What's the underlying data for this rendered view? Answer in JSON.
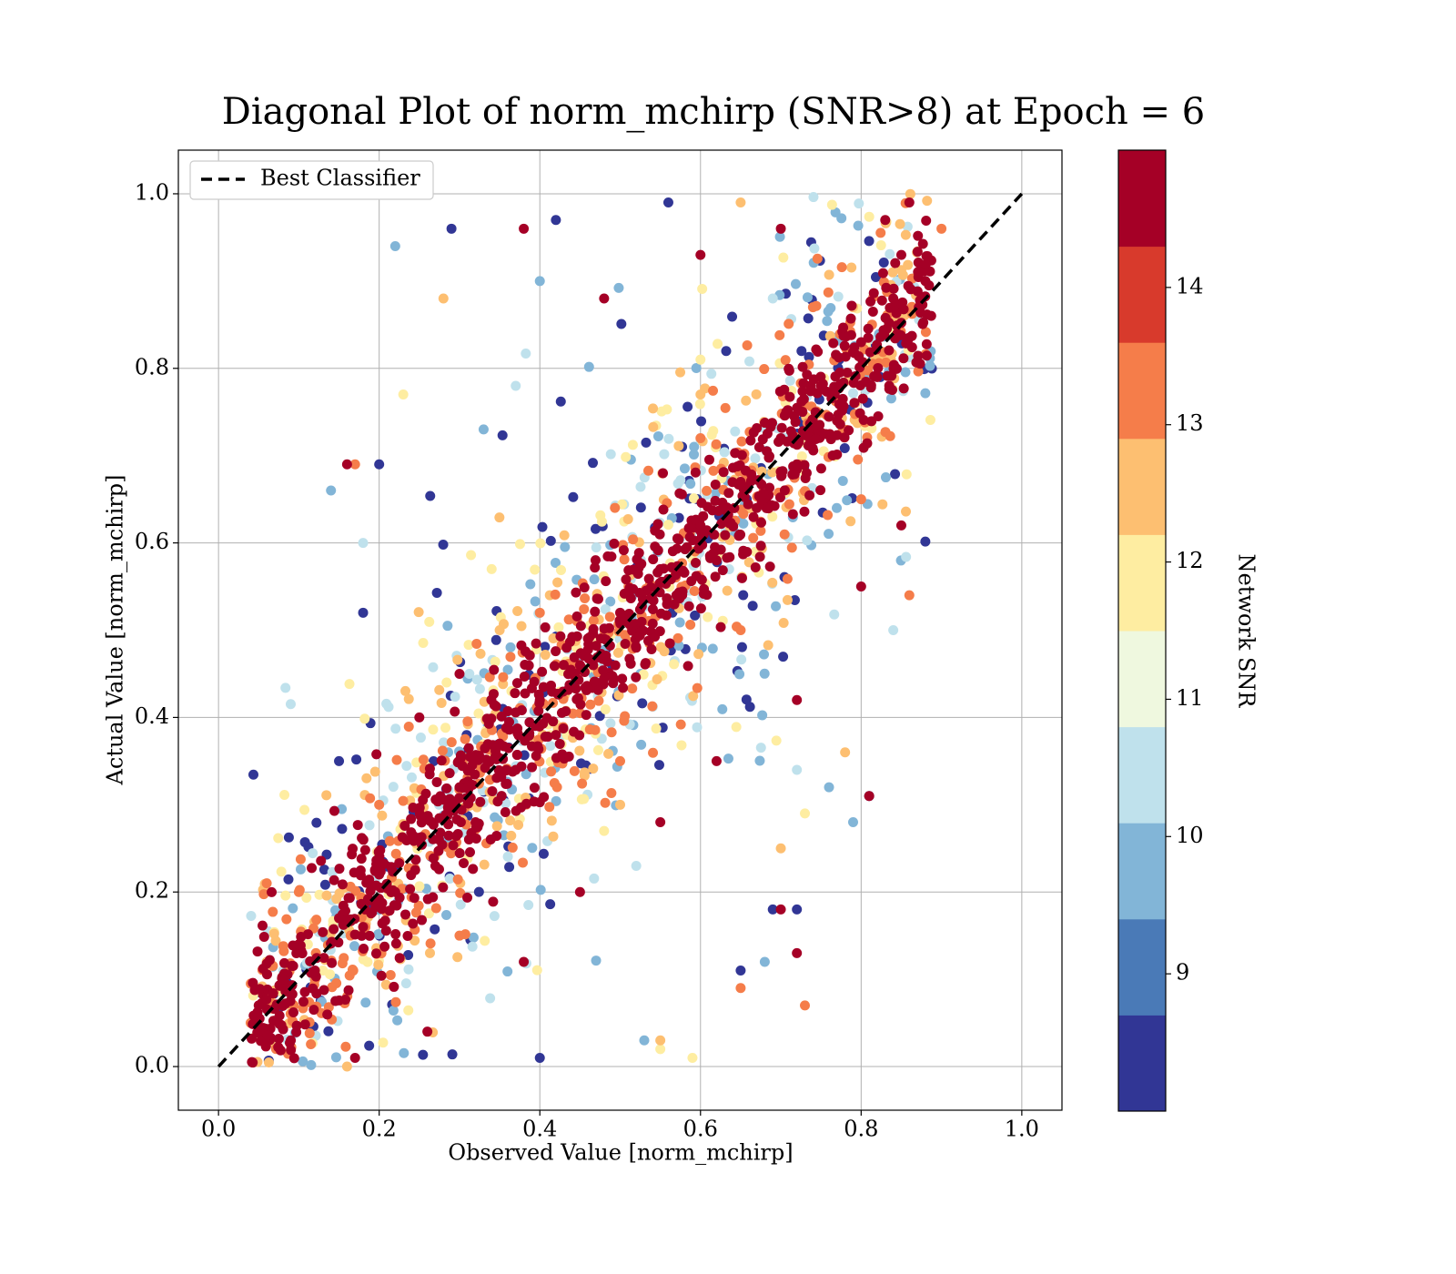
{
  "chart_data": {
    "type": "scatter",
    "title": "Diagonal Plot of norm_mchirp (SNR>8) at Epoch = 6",
    "xlabel": "Observed Value [norm_mchirp]",
    "ylabel": "Actual Value [norm_mchirp]",
    "xlim": [
      -0.05,
      1.05
    ],
    "ylim": [
      -0.05,
      1.05
    ],
    "xticks": [
      "0.0",
      "0.2",
      "0.4",
      "0.6",
      "0.8",
      "1.0"
    ],
    "yticks": [
      "0.0",
      "0.2",
      "0.4",
      "0.6",
      "0.8",
      "1.0"
    ],
    "grid": true,
    "legend": {
      "position": "top-left",
      "entries": [
        "Best Classifier"
      ]
    },
    "reference_line": {
      "name": "Best Classifier",
      "style": "dashed",
      "color": "#000000",
      "x": [
        0.0,
        1.0
      ],
      "y": [
        0.0,
        1.0
      ]
    },
    "colorbar": {
      "label": "Network SNR",
      "range": [
        8,
        15
      ],
      "ticks": [
        "9",
        "10",
        "11",
        "12",
        "13",
        "14"
      ],
      "colors": [
        "#313695",
        "#4575b4",
        "#74add1",
        "#abd9e9",
        "#e0f3f8",
        "#ffffbf",
        "#fee090",
        "#fdae61",
        "#f46d43",
        "#d73027",
        "#a50026"
      ]
    },
    "bin_colors": [
      "#313695",
      "#4a7ab7",
      "#82b5d7",
      "#bfe1ec",
      "#eff8df",
      "#feeda1",
      "#fdbf71",
      "#f57d4a",
      "#d83a2c",
      "#a50026"
    ],
    "series": [
      {
        "snr_range": [
          14,
          15
        ],
        "points": [
          [
            0.05,
            0.07
          ],
          [
            0.08,
            0.1
          ],
          [
            0.1,
            0.14
          ],
          [
            0.12,
            0.11
          ],
          [
            0.15,
            0.17
          ],
          [
            0.18,
            0.16
          ],
          [
            0.2,
            0.22
          ],
          [
            0.22,
            0.2
          ],
          [
            0.25,
            0.26
          ],
          [
            0.27,
            0.23
          ],
          [
            0.3,
            0.32
          ],
          [
            0.32,
            0.28
          ],
          [
            0.35,
            0.37
          ],
          [
            0.37,
            0.34
          ],
          [
            0.4,
            0.42
          ],
          [
            0.42,
            0.38
          ],
          [
            0.45,
            0.46
          ],
          [
            0.47,
            0.44
          ],
          [
            0.5,
            0.52
          ],
          [
            0.52,
            0.48
          ],
          [
            0.55,
            0.57
          ],
          [
            0.57,
            0.54
          ],
          [
            0.6,
            0.62
          ],
          [
            0.62,
            0.58
          ],
          [
            0.65,
            0.67
          ],
          [
            0.67,
            0.64
          ],
          [
            0.7,
            0.72
          ],
          [
            0.72,
            0.69
          ],
          [
            0.75,
            0.78
          ],
          [
            0.77,
            0.74
          ],
          [
            0.8,
            0.83
          ],
          [
            0.82,
            0.79
          ],
          [
            0.84,
            0.88
          ],
          [
            0.85,
            0.93
          ],
          [
            0.83,
            0.97
          ],
          [
            0.86,
            0.99
          ],
          [
            0.88,
            0.9
          ],
          [
            0.09,
            0.03
          ],
          [
            0.17,
            0.01
          ],
          [
            0.26,
            0.04
          ],
          [
            0.38,
            0.12
          ],
          [
            0.45,
            0.2
          ],
          [
            0.55,
            0.28
          ],
          [
            0.62,
            0.35
          ],
          [
            0.72,
            0.42
          ],
          [
            0.8,
            0.55
          ],
          [
            0.85,
            0.62
          ],
          [
            0.16,
            0.69
          ],
          [
            0.38,
            0.96
          ],
          [
            0.48,
            0.88
          ],
          [
            0.6,
            0.93
          ],
          [
            0.7,
            0.96
          ],
          [
            0.81,
            0.31
          ],
          [
            0.7,
            0.18
          ],
          [
            0.72,
            0.13
          ],
          [
            0.3,
            0.45
          ],
          [
            0.25,
            0.4
          ]
        ],
        "cloud": {
          "n": 900,
          "spread": 0.045,
          "offset": 0.0
        }
      },
      {
        "snr_range": [
          13,
          14
        ],
        "points": [
          [
            0.04,
            0.05
          ],
          [
            0.06,
            0.21
          ],
          [
            0.1,
            0.2
          ],
          [
            0.2,
            0.3
          ],
          [
            0.3,
            0.15
          ],
          [
            0.4,
            0.52
          ],
          [
            0.5,
            0.35
          ],
          [
            0.6,
            0.72
          ],
          [
            0.65,
            0.5
          ],
          [
            0.74,
            0.87
          ],
          [
            0.8,
            0.65
          ],
          [
            0.86,
            0.54
          ],
          [
            0.9,
            0.96
          ],
          [
            0.65,
            0.09
          ],
          [
            0.73,
            0.07
          ],
          [
            0.17,
            0.69
          ]
        ],
        "cloud": {
          "n": 320,
          "spread": 0.075,
          "offset": 0.0
        }
      },
      {
        "snr_range": [
          12,
          13
        ],
        "points": [
          [
            0.06,
            0.12
          ],
          [
            0.16,
            0.0
          ],
          [
            0.28,
            0.88
          ],
          [
            0.35,
            0.5
          ],
          [
            0.5,
            0.3
          ],
          [
            0.6,
            0.77
          ],
          [
            0.7,
            0.25
          ],
          [
            0.78,
            0.36
          ],
          [
            0.79,
            0.87
          ],
          [
            0.55,
            0.03
          ],
          [
            0.65,
            0.99
          ]
        ],
        "cloud": {
          "n": 200,
          "spread": 0.1,
          "offset": 0.0
        }
      },
      {
        "snr_range": [
          11,
          12
        ],
        "points": [
          [
            0.13,
            0.11
          ],
          [
            0.23,
            0.77
          ],
          [
            0.34,
            0.57
          ],
          [
            0.48,
            0.27
          ],
          [
            0.6,
            0.81
          ],
          [
            0.73,
            0.29
          ],
          [
            0.59,
            0.01
          ],
          [
            0.55,
            0.02
          ]
        ],
        "cloud": {
          "n": 170,
          "spread": 0.12,
          "offset": 0.0
        }
      },
      {
        "snr_range": [
          10,
          11
        ],
        "points": [
          [
            0.18,
            0.6
          ],
          [
            0.37,
            0.78
          ],
          [
            0.52,
            0.23
          ],
          [
            0.69,
            0.88
          ],
          [
            0.84,
            0.5
          ],
          [
            0.72,
            0.34
          ]
        ],
        "cloud": {
          "n": 160,
          "spread": 0.13,
          "offset": 0.0
        }
      },
      {
        "snr_range": [
          9,
          10
        ],
        "points": [
          [
            0.14,
            0.66
          ],
          [
            0.22,
            0.94
          ],
          [
            0.33,
            0.73
          ],
          [
            0.4,
            0.9
          ],
          [
            0.53,
            0.03
          ],
          [
            0.79,
            0.28
          ],
          [
            0.76,
            0.32
          ],
          [
            0.68,
            0.12
          ]
        ],
        "cloud": {
          "n": 170,
          "spread": 0.14,
          "offset": 0.0
        }
      },
      {
        "snr_range": [
          8,
          9
        ],
        "points": [
          [
            0.15,
            0.35
          ],
          [
            0.18,
            0.52
          ],
          [
            0.2,
            0.69
          ],
          [
            0.29,
            0.96
          ],
          [
            0.42,
            0.97
          ],
          [
            0.56,
            0.99
          ],
          [
            0.72,
            0.18
          ],
          [
            0.81,
            0.31
          ],
          [
            0.69,
            0.18
          ],
          [
            0.65,
            0.11
          ],
          [
            0.4,
            0.01
          ]
        ],
        "cloud": {
          "n": 170,
          "spread": 0.15,
          "offset": 0.0
        }
      }
    ]
  }
}
